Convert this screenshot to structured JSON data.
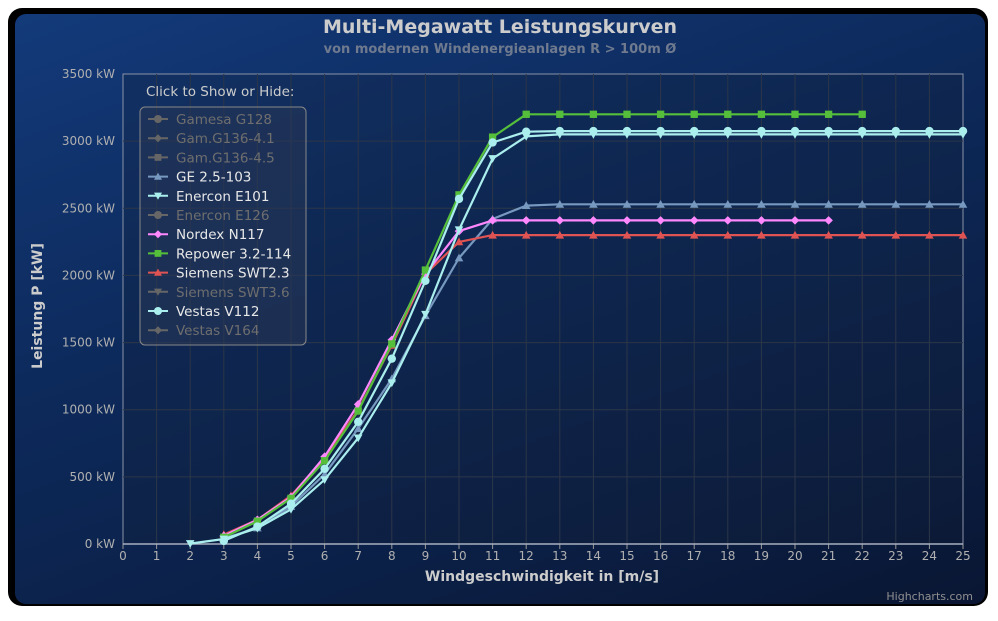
{
  "colors": {
    "text": "#cccccc",
    "title": "#ffffff",
    "subtitle": "#888888",
    "grid": "#333333",
    "hidden": "#666666"
  },
  "credits": "Highcharts.com",
  "chart_data": {
    "type": "line",
    "title": "Multi-Megawatt Leistungskurven",
    "subtitle": "von modernen Windenergieanlagen R > 100m Ø",
    "xlabel": "Windgeschwindigkeit in [m/s]",
    "ylabel": "Leistung P [kW]",
    "xlim": [
      0,
      25
    ],
    "ylim": [
      0,
      3500
    ],
    "x_ticks": [
      0,
      1,
      2,
      3,
      4,
      5,
      6,
      7,
      8,
      9,
      10,
      11,
      12,
      13,
      14,
      15,
      16,
      17,
      18,
      19,
      20,
      21,
      22,
      23,
      24,
      25
    ],
    "y_ticks": [
      0,
      500,
      1000,
      1500,
      2000,
      2500,
      3000,
      3500
    ],
    "y_tick_labels": [
      "0 kW",
      "500 kW",
      "1000 kW",
      "1500 kW",
      "2000 kW",
      "2500 kW",
      "3000 kW",
      "3500 kW"
    ],
    "legend_title": "Click to Show or Hide:",
    "legend_position": "top-left",
    "series": [
      {
        "name": "Gamesa G128",
        "visible": false,
        "color": "#666666",
        "marker": "circle",
        "x": [],
        "values": []
      },
      {
        "name": "Gam.G136-4.1",
        "visible": false,
        "color": "#666666",
        "marker": "diamond",
        "x": [],
        "values": []
      },
      {
        "name": "Gam.G136-4.5",
        "visible": false,
        "color": "#666666",
        "marker": "square",
        "x": [],
        "values": []
      },
      {
        "name": "GE 2.5-103",
        "visible": true,
        "color": "#7798bf",
        "marker": "triangle",
        "x": [
          3,
          4,
          5,
          6,
          7,
          8,
          9,
          10,
          11,
          12,
          13,
          14,
          15,
          16,
          17,
          18,
          19,
          20,
          21,
          22,
          23,
          24,
          25
        ],
        "values": [
          40,
          120,
          280,
          520,
          860,
          1230,
          1700,
          2130,
          2420,
          2520,
          2530,
          2530,
          2530,
          2530,
          2530,
          2530,
          2530,
          2530,
          2530,
          2530,
          2530,
          2530,
          2530
        ]
      },
      {
        "name": "Enercon E101",
        "visible": true,
        "color": "#aaeeee",
        "marker": "triangle-down",
        "x": [
          2,
          3,
          4,
          5,
          6,
          7,
          8,
          9,
          10,
          11,
          12,
          13,
          14,
          15,
          16,
          17,
          18,
          19,
          20,
          21,
          22,
          23,
          24,
          25
        ],
        "values": [
          3,
          37,
          118,
          258,
          479,
          790,
          1200,
          1710,
          2340,
          2870,
          3035,
          3050,
          3050,
          3050,
          3050,
          3050,
          3050,
          3050,
          3050,
          3050,
          3050,
          3050,
          3050,
          3050
        ]
      },
      {
        "name": "Enercon E126",
        "visible": false,
        "color": "#666666",
        "marker": "circle",
        "x": [],
        "values": []
      },
      {
        "name": "Nordex N117",
        "visible": true,
        "color": "#ff88ff",
        "marker": "diamond",
        "x": [
          3,
          4,
          5,
          6,
          7,
          8,
          9,
          10,
          11,
          12,
          13,
          14,
          15,
          16,
          17,
          18,
          19,
          20,
          21
        ],
        "values": [
          60,
          180,
          350,
          650,
          1040,
          1520,
          2010,
          2330,
          2410,
          2410,
          2410,
          2410,
          2410,
          2410,
          2410,
          2410,
          2410,
          2410,
          2410
        ]
      },
      {
        "name": "Repower 3.2-114",
        "visible": true,
        "color": "#55bf3b",
        "marker": "square",
        "x": [
          3,
          4,
          5,
          6,
          7,
          8,
          9,
          10,
          11,
          12,
          13,
          14,
          15,
          16,
          17,
          18,
          19,
          20,
          21,
          22
        ],
        "values": [
          50,
          170,
          340,
          620,
          990,
          1490,
          2040,
          2600,
          3030,
          3200,
          3200,
          3200,
          3200,
          3200,
          3200,
          3200,
          3200,
          3200,
          3200,
          3200
        ]
      },
      {
        "name": "Siemens SWT2.3",
        "visible": true,
        "color": "#df5353",
        "marker": "triangle",
        "x": [
          3,
          4,
          5,
          6,
          7,
          8,
          9,
          10,
          11,
          12,
          13,
          14,
          15,
          16,
          17,
          18,
          19,
          20,
          21,
          22,
          23,
          24,
          25
        ],
        "values": [
          70,
          180,
          360,
          640,
          1000,
          1480,
          2010,
          2250,
          2300,
          2300,
          2300,
          2300,
          2300,
          2300,
          2300,
          2300,
          2300,
          2300,
          2300,
          2300,
          2300,
          2300,
          2300
        ]
      },
      {
        "name": "Siemens SWT3.6",
        "visible": false,
        "color": "#666666",
        "marker": "triangle-down",
        "x": [],
        "values": []
      },
      {
        "name": "Vestas V112",
        "visible": true,
        "color": "#aaeeee",
        "marker": "circle",
        "x": [
          3,
          4,
          5,
          6,
          7,
          8,
          9,
          10,
          11,
          12,
          13,
          14,
          15,
          16,
          17,
          18,
          19,
          20,
          21,
          22,
          23,
          24,
          25
        ],
        "values": [
          23,
          130,
          300,
          560,
          910,
          1380,
          1960,
          2570,
          2990,
          3070,
          3075,
          3075,
          3075,
          3075,
          3075,
          3075,
          3075,
          3075,
          3075,
          3075,
          3075,
          3075,
          3075
        ]
      },
      {
        "name": "Vestas V164",
        "visible": false,
        "color": "#666666",
        "marker": "diamond",
        "x": [],
        "values": []
      }
    ]
  }
}
